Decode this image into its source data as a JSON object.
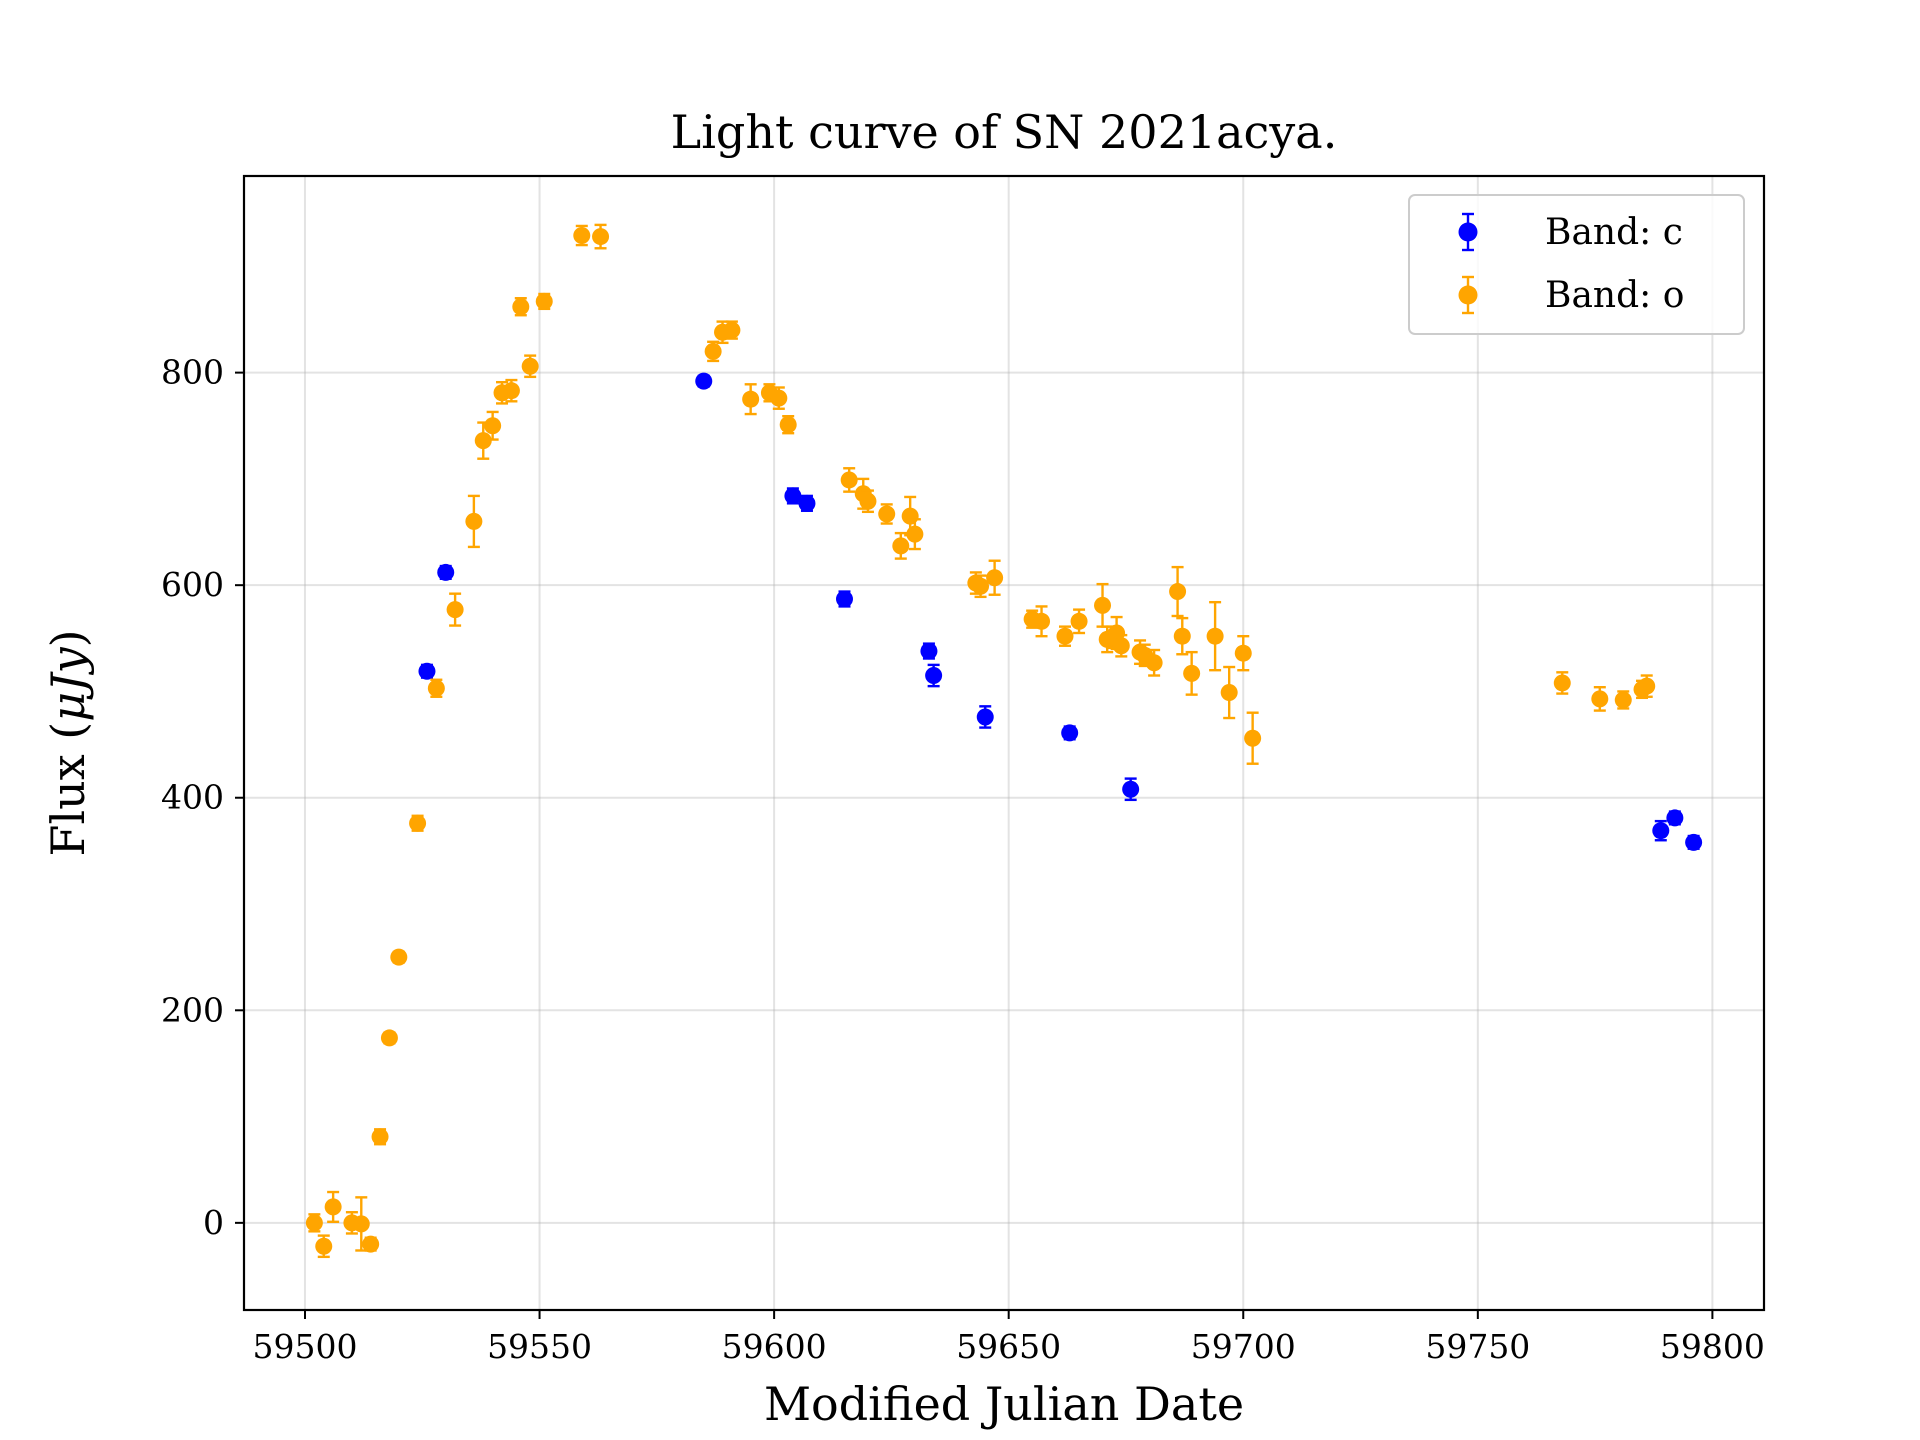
{
  "chart_data": {
    "type": "scatter",
    "title": "Light curve of SN 2021acya.",
    "xlabel": "Modified Julian Date",
    "ylabel_prefix": "Flux (",
    "ylabel_mu": "μ",
    "ylabel_unit": "Jy",
    "ylabel_suffix": ")",
    "xlim": [
      59487,
      59811
    ],
    "ylim": [
      -82,
      985
    ],
    "xticks": [
      59500,
      59550,
      59600,
      59650,
      59700,
      59750,
      59800
    ],
    "xtick_labels": [
      "59500",
      "59550",
      "59600",
      "59650",
      "59700",
      "59750",
      "59800"
    ],
    "yticks": [
      0,
      200,
      400,
      600,
      800
    ],
    "ytick_labels": [
      "0",
      "200",
      "400",
      "600",
      "800"
    ],
    "grid": true,
    "legend_position": "top-right",
    "series": [
      {
        "name": "Band: c",
        "color": "#0000ff",
        "points": [
          [
            59526,
            519,
            6
          ],
          [
            59530,
            612,
            6
          ],
          [
            59585,
            792,
            5
          ],
          [
            59604,
            684,
            7
          ],
          [
            59607,
            677,
            7
          ],
          [
            59615,
            587,
            7
          ],
          [
            59633,
            538,
            7
          ],
          [
            59634,
            515,
            10
          ],
          [
            59645,
            476,
            10
          ],
          [
            59663,
            461,
            6
          ],
          [
            59676,
            408,
            10
          ],
          [
            59789,
            369,
            9
          ],
          [
            59792,
            381,
            6
          ],
          [
            59796,
            358,
            6
          ]
        ]
      },
      {
        "name": "Band: o",
        "color": "#ffa500",
        "points": [
          [
            59502,
            0,
            8
          ],
          [
            59504,
            -22,
            10
          ],
          [
            59506,
            15,
            14
          ],
          [
            59510,
            0,
            10
          ],
          [
            59512,
            -1,
            25
          ],
          [
            59514,
            -20,
            6
          ],
          [
            59516,
            81,
            7
          ],
          [
            59518,
            174,
            5
          ],
          [
            59520,
            250,
            5
          ],
          [
            59524,
            376,
            7
          ],
          [
            59528,
            503,
            8
          ],
          [
            59532,
            577,
            15
          ],
          [
            59536,
            660,
            24
          ],
          [
            59538,
            736,
            17
          ],
          [
            59540,
            750,
            13
          ],
          [
            59542,
            781,
            10
          ],
          [
            59544,
            783,
            10
          ],
          [
            59546,
            862,
            8
          ],
          [
            59548,
            806,
            10
          ],
          [
            59551,
            867,
            7
          ],
          [
            59559,
            929,
            9
          ],
          [
            59563,
            928,
            11
          ],
          [
            59587,
            820,
            9
          ],
          [
            59589,
            838,
            10
          ],
          [
            59591,
            840,
            8
          ],
          [
            59595,
            775,
            14
          ],
          [
            59599,
            781,
            8
          ],
          [
            59601,
            776,
            10
          ],
          [
            59603,
            751,
            8
          ],
          [
            59616,
            699,
            11
          ],
          [
            59619,
            686,
            14
          ],
          [
            59620,
            679,
            10
          ],
          [
            59624,
            667,
            9
          ],
          [
            59627,
            637,
            12
          ],
          [
            59629,
            665,
            18
          ],
          [
            59630,
            648,
            14
          ],
          [
            59643,
            602,
            10
          ],
          [
            59644,
            599,
            10
          ],
          [
            59647,
            607,
            16
          ],
          [
            59655,
            568,
            8
          ],
          [
            59657,
            566,
            14
          ],
          [
            59662,
            552,
            9
          ],
          [
            59665,
            566,
            11
          ],
          [
            59670,
            581,
            20
          ],
          [
            59671,
            549,
            12
          ],
          [
            59672,
            551,
            10
          ],
          [
            59673,
            555,
            15
          ],
          [
            59674,
            543,
            10
          ],
          [
            59678,
            537,
            11
          ],
          [
            59679,
            534,
            10
          ],
          [
            59681,
            527,
            12
          ],
          [
            59686,
            594,
            23
          ],
          [
            59687,
            552,
            17
          ],
          [
            59689,
            517,
            20
          ],
          [
            59694,
            552,
            32
          ],
          [
            59697,
            499,
            24
          ],
          [
            59700,
            536,
            16
          ],
          [
            59702,
            456,
            24
          ],
          [
            59768,
            508,
            10
          ],
          [
            59776,
            493,
            11
          ],
          [
            59781,
            492,
            8
          ],
          [
            59785,
            502,
            8
          ],
          [
            59786,
            505,
            10
          ]
        ]
      }
    ]
  }
}
